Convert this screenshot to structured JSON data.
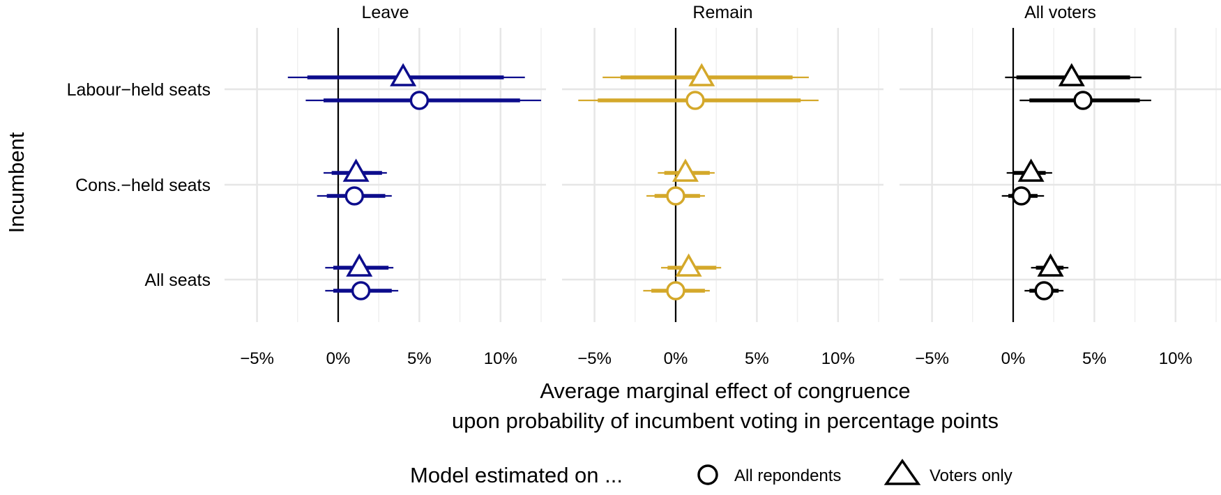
{
  "chart_data": {
    "type": "dot-whisker",
    "xlabel_line1": "Average marginal effect of congruence",
    "xlabel_line2": "upon probability of incumbent voting in percentage points",
    "ylabel": "Incumbent",
    "xlim": [
      -7,
      12.8
    ],
    "x_ticks": [
      -5,
      0,
      5,
      10
    ],
    "x_tick_labels": [
      "−5%",
      "0%",
      "5%",
      "10%"
    ],
    "categories": [
      "Labour−held seats",
      "Cons.−held seats",
      "All seats"
    ],
    "panels": [
      {
        "name": "Leave",
        "color": "#0c0c8c",
        "estimates": [
          {
            "category": 0,
            "model": "Voters only",
            "est": 4.0,
            "ci90": [
              -1.9,
              10.2
            ],
            "ci95": [
              -3.1,
              11.5
            ]
          },
          {
            "category": 0,
            "model": "All repondents",
            "est": 5.0,
            "ci90": [
              -0.9,
              11.2
            ],
            "ci95": [
              -2.0,
              12.5
            ]
          },
          {
            "category": 1,
            "model": "Voters only",
            "est": 1.1,
            "ci90": [
              -0.4,
              2.7
            ],
            "ci95": [
              -0.9,
              3.0
            ]
          },
          {
            "category": 1,
            "model": "All repondents",
            "est": 1.0,
            "ci90": [
              -0.7,
              2.9
            ],
            "ci95": [
              -1.3,
              3.3
            ]
          },
          {
            "category": 2,
            "model": "Voters only",
            "est": 1.3,
            "ci90": [
              -0.3,
              3.1
            ],
            "ci95": [
              -0.8,
              3.4
            ]
          },
          {
            "category": 2,
            "model": "All repondents",
            "est": 1.4,
            "ci90": [
              -0.3,
              3.3
            ],
            "ci95": [
              -0.8,
              3.7
            ]
          }
        ]
      },
      {
        "name": "Remain",
        "color": "#d4a82a",
        "estimates": [
          {
            "category": 0,
            "model": "Voters only",
            "est": 1.6,
            "ci90": [
              -3.4,
              7.2
            ],
            "ci95": [
              -4.5,
              8.2
            ]
          },
          {
            "category": 0,
            "model": "All repondents",
            "est": 1.2,
            "ci90": [
              -4.8,
              7.7
            ],
            "ci95": [
              -6.0,
              8.8
            ]
          },
          {
            "category": 1,
            "model": "Voters only",
            "est": 0.6,
            "ci90": [
              -0.7,
              2.1
            ],
            "ci95": [
              -1.1,
              2.4
            ]
          },
          {
            "category": 1,
            "model": "All repondents",
            "est": 0.0,
            "ci90": [
              -1.3,
              1.5
            ],
            "ci95": [
              -1.8,
              1.8
            ]
          },
          {
            "category": 2,
            "model": "Voters only",
            "est": 0.8,
            "ci90": [
              -0.5,
              2.5
            ],
            "ci95": [
              -0.9,
              2.8
            ]
          },
          {
            "category": 2,
            "model": "All repondents",
            "est": 0.0,
            "ci90": [
              -1.5,
              1.8
            ],
            "ci95": [
              -2.0,
              2.1
            ]
          }
        ]
      },
      {
        "name": "All voters",
        "color": "#000000",
        "estimates": [
          {
            "category": 0,
            "model": "Voters only",
            "est": 3.6,
            "ci90": [
              0.2,
              7.2
            ],
            "ci95": [
              -0.5,
              7.9
            ]
          },
          {
            "category": 0,
            "model": "All repondents",
            "est": 4.3,
            "ci90": [
              1.0,
              7.8
            ],
            "ci95": [
              0.4,
              8.5
            ]
          },
          {
            "category": 1,
            "model": "Voters only",
            "est": 1.1,
            "ci90": [
              0.0,
              2.0
            ],
            "ci95": [
              -0.4,
              2.4
            ]
          },
          {
            "category": 1,
            "model": "All repondents",
            "est": 0.5,
            "ci90": [
              -0.3,
              1.5
            ],
            "ci95": [
              -0.7,
              1.9
            ]
          },
          {
            "category": 2,
            "model": "Voters only",
            "est": 2.3,
            "ci90": [
              1.4,
              3.1
            ],
            "ci95": [
              1.1,
              3.4
            ]
          },
          {
            "category": 2,
            "model": "All repondents",
            "est": 1.9,
            "ci90": [
              1.0,
              2.8
            ],
            "ci95": [
              0.7,
              3.1
            ]
          }
        ]
      }
    ],
    "legend": {
      "title": "Model estimated on ...",
      "position": "bottom",
      "items": [
        {
          "label": "All repondents",
          "shape": "circle"
        },
        {
          "label": "Voters only",
          "shape": "triangle"
        }
      ]
    }
  }
}
